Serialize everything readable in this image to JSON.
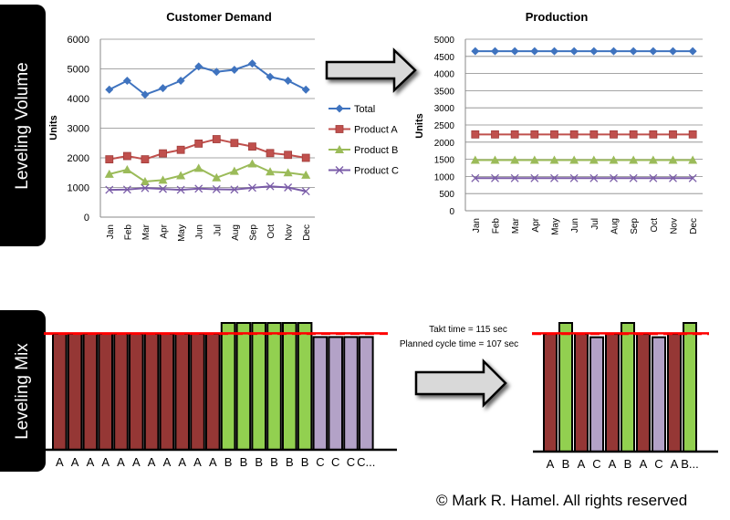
{
  "sections": {
    "volume_label": "Leveling Volume",
    "mix_label": "Leveling Mix"
  },
  "chart_data": [
    {
      "type": "line",
      "title": "Customer Demand",
      "ylabel": "Units",
      "ylim": [
        0,
        6000
      ],
      "yticks": [
        0,
        1000,
        2000,
        3000,
        4000,
        5000,
        6000
      ],
      "grid": true,
      "legend": "right",
      "categories": [
        "Jan",
        "Feb",
        "Mar",
        "Apr",
        "May",
        "Jun",
        "Jul",
        "Aug",
        "Sep",
        "Oct",
        "Nov",
        "Dec"
      ],
      "series": [
        {
          "name": "Total",
          "color": "#3f73bf",
          "marker": "diamond",
          "values": [
            4300,
            4600,
            4130,
            4350,
            4600,
            5080,
            4900,
            4970,
            5180,
            4730,
            4600,
            4300
          ]
        },
        {
          "name": "Product A",
          "color": "#c0504d",
          "marker": "square",
          "values": [
            1950,
            2060,
            1950,
            2150,
            2270,
            2480,
            2630,
            2500,
            2380,
            2160,
            2100,
            2000
          ]
        },
        {
          "name": "Product B",
          "color": "#9bbb59",
          "marker": "triangle",
          "values": [
            1450,
            1600,
            1200,
            1250,
            1400,
            1650,
            1330,
            1550,
            1800,
            1530,
            1500,
            1420
          ]
        },
        {
          "name": "Product C",
          "color": "#7a5ca8",
          "marker": "x",
          "values": [
            920,
            930,
            980,
            950,
            920,
            960,
            940,
            930,
            990,
            1040,
            1000,
            870
          ]
        }
      ]
    },
    {
      "type": "line",
      "title": "Production",
      "ylabel": "Units",
      "ylim": [
        0,
        5000
      ],
      "yticks": [
        0,
        500,
        1000,
        1500,
        2000,
        2500,
        3000,
        3500,
        4000,
        4500,
        5000
      ],
      "grid": true,
      "categories": [
        "Jan",
        "Feb",
        "Mar",
        "Apr",
        "May",
        "Jun",
        "Jul",
        "Aug",
        "Sep",
        "Oct",
        "Nov",
        "Dec"
      ],
      "series": [
        {
          "color": "#3f73bf",
          "marker": "diamond",
          "values": [
            4650,
            4650,
            4650,
            4650,
            4650,
            4650,
            4650,
            4650,
            4650,
            4650,
            4650,
            4650
          ]
        },
        {
          "color": "#c0504d",
          "marker": "square",
          "values": [
            2225,
            2225,
            2225,
            2225,
            2225,
            2225,
            2225,
            2225,
            2225,
            2225,
            2225,
            2225
          ]
        },
        {
          "color": "#9bbb59",
          "marker": "triangle",
          "values": [
            1475,
            1475,
            1475,
            1475,
            1475,
            1475,
            1475,
            1475,
            1475,
            1475,
            1475,
            1475
          ]
        },
        {
          "color": "#7a5ca8",
          "marker": "x",
          "values": [
            950,
            950,
            950,
            950,
            950,
            950,
            950,
            950,
            950,
            950,
            950,
            950
          ]
        }
      ]
    }
  ],
  "mix": {
    "takt_label": "Takt time = 115 sec",
    "cycle_label": "Planned cycle time = 107 sec",
    "takt": 115,
    "cycle": 107,
    "product_colors": {
      "A": "#953735",
      "B": "#92d050",
      "C": "#b3a2c7"
    },
    "product_times": {
      "A": 107,
      "B": 117,
      "C": 104
    },
    "batched": [
      "A",
      "A",
      "A",
      "A",
      "A",
      "A",
      "A",
      "A",
      "A",
      "A",
      "A",
      "B",
      "B",
      "B",
      "B",
      "B",
      "B",
      "C",
      "C",
      "C",
      "C"
    ],
    "batched_last_label": "C...",
    "leveled": [
      "A",
      "B",
      "A",
      "C",
      "A",
      "B",
      "A",
      "C",
      "A",
      "B"
    ],
    "leveled_last_label": "B..."
  },
  "copyright": "© Mark R. Hamel. All rights reserved"
}
